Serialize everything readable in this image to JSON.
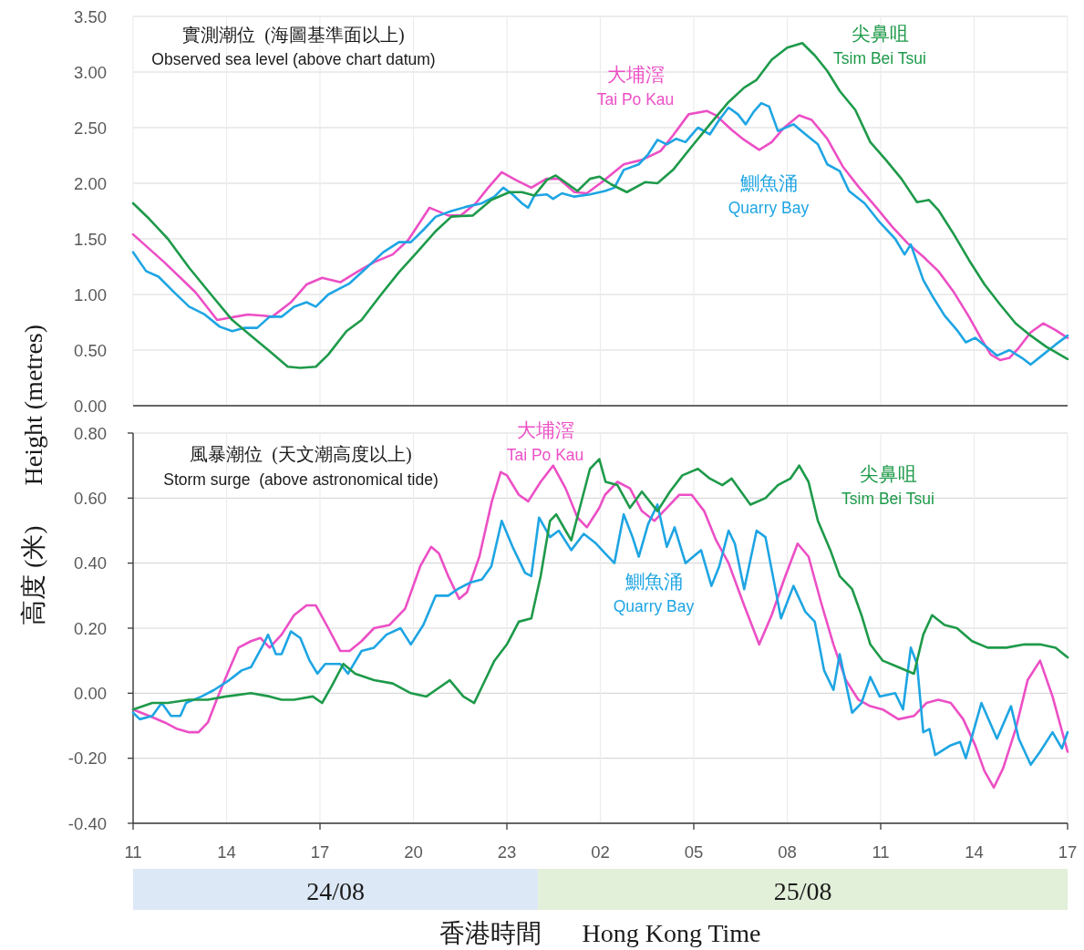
{
  "chart_data": [
    {
      "type": "line",
      "title": "實測潮位  (海圖基準面以上)",
      "subtitle": "Observed sea level (above chart datum)",
      "ylabel": "高度 (米)  Height (metres)",
      "xlim": [
        "--08-24T11:00",
        "--08-25T17:00"
      ],
      "xticks": [
        "--08-24T11:00",
        "--08-24T14:00",
        "--08-24T17:00",
        "--08-24T20:00",
        "--08-24T23:00",
        "--08-25T02:00",
        "--08-25T05:00",
        "--08-25T08:00",
        "--08-25T11:00",
        "--08-25T14:00",
        "--08-25T17:00"
      ],
      "ylim": [
        0,
        3.5
      ],
      "yticks": [
        {
          "value": 0,
          "label": "0.00"
        },
        {
          "value": 0.5,
          "label": "0.50"
        },
        {
          "value": 1,
          "label": "1.00"
        },
        {
          "value": 1.5,
          "label": "1.50"
        },
        {
          "value": 2,
          "label": "2.00"
        },
        {
          "value": 2.5,
          "label": "2.50"
        },
        {
          "value": 3,
          "label": "3.00"
        },
        {
          "value": 3.5,
          "label": "3.50"
        }
      ],
      "grid": true,
      "tick_labels": "y",
      "series": [
        {
          "name": "大埔滘 Tai Po Kau",
          "color": "#ec4fc5",
          "x": [
            "--08-24T11:00",
            "--08-24T12:00",
            "--08-24T13:00",
            "--08-24T13:42",
            "--08-24T14:17",
            "--08-24T14:41",
            "--08-24T15:11",
            "--08-24T15:28",
            "--08-24T16:04",
            "--08-24T16:34",
            "--08-24T17:04",
            "--08-24T17:39",
            "--08-24T18:14",
            "--08-24T18:44",
            "--08-24T19:20",
            "--08-24T19:50",
            "--08-24T20:31",
            "--08-24T21:07",
            "--08-24T21:31",
            "--08-24T22:00",
            "--08-24T22:24",
            "--08-24T22:50",
            "--08-24T23:17",
            "--08-24T23:47",
            "--08-25T00:16",
            "--08-25T00:40",
            "--08-25T01:10",
            "--08-25T01:34",
            "--08-25T02:03",
            "--08-25T02:45",
            "--08-25T03:20",
            "--08-25T03:56",
            "--08-25T04:20",
            "--08-25T04:50",
            "--08-25T05:25",
            "--08-25T05:43",
            "--08-25T06:13",
            "--08-25T06:37",
            "--08-25T07:06",
            "--08-25T07:30",
            "--08-25T07:54",
            "--08-25T08:23",
            "--08-25T08:47",
            "--08-25T09:17",
            "--08-25T09:47",
            "--08-25T10:17",
            "--08-25T10:52",
            "--08-25T11:22",
            "--08-25T11:52",
            "--08-25T12:22",
            "--08-25T12:51",
            "--08-25T13:21",
            "--08-25T13:50",
            "--08-25T14:14",
            "--08-25T14:32",
            "--08-25T14:50",
            "--08-25T15:08",
            "--08-25T15:26",
            "--08-25T15:49",
            "--08-25T16:13",
            "--08-25T16:37",
            "--08-25T17:00"
          ],
          "values": [
            1.54,
            1.29,
            1.02,
            0.77,
            0.8,
            0.82,
            0.81,
            0.8,
            0.93,
            1.09,
            1.15,
            1.11,
            1.21,
            1.29,
            1.36,
            1.49,
            1.78,
            1.71,
            1.71,
            1.82,
            1.96,
            2.1,
            2.03,
            1.96,
            2.04,
            2.04,
            1.92,
            1.91,
            2.01,
            2.17,
            2.21,
            2.29,
            2.43,
            2.62,
            2.65,
            2.61,
            2.48,
            2.39,
            2.3,
            2.37,
            2.5,
            2.61,
            2.57,
            2.4,
            2.15,
            1.97,
            1.78,
            1.61,
            1.46,
            1.34,
            1.21,
            1.02,
            0.8,
            0.6,
            0.46,
            0.41,
            0.43,
            0.52,
            0.66,
            0.74,
            0.68,
            0.61
          ]
        },
        {
          "name": "鰂魚涌 Quarry Bay",
          "color": "#1ea5e3",
          "x": [
            "--08-24T11:00",
            "--08-24T11:25",
            "--08-24T11:49",
            "--08-24T12:19",
            "--08-24T12:48",
            "--08-24T13:18",
            "--08-24T13:47",
            "--08-24T14:11",
            "--08-24T14:35",
            "--08-24T14:59",
            "--08-24T15:23",
            "--08-24T15:46",
            "--08-24T16:10",
            "--08-24T16:34",
            "--08-24T16:52",
            "--08-24T17:16",
            "--08-24T17:45",
            "--08-24T17:57",
            "--08-24T18:32",
            "--08-24T19:02",
            "--08-24T19:32",
            "--08-24T19:55",
            "--08-24T20:19",
            "--08-24T20:43",
            "--08-24T21:13",
            "--08-24T21:43",
            "--08-24T22:12",
            "--08-24T22:36",
            "--08-24T22:53",
            "--08-24T23:11",
            "--08-24T23:29",
            "--08-24T23:41",
            "--08-24T23:53",
            "--08-25T00:17",
            "--08-25T00:29",
            "--08-25T00:46",
            "--08-25T01:10",
            "--08-25T01:40",
            "--08-25T02:09",
            "--08-25T02:27",
            "--08-25T02:45",
            "--08-25T03:14",
            "--08-25T03:32",
            "--08-25T03:50",
            "--08-25T04:08",
            "--08-25T04:26",
            "--08-25T04:44",
            "--08-25T05:08",
            "--08-25T05:31",
            "--08-25T05:49",
            "--08-25T06:07",
            "--08-25T06:25",
            "--08-25T06:40",
            "--08-25T06:55",
            "--08-25T07:10",
            "--08-25T07:25",
            "--08-25T07:42",
            "--08-25T08:12",
            "--08-25T08:35",
            "--08-25T08:59",
            "--08-25T09:17",
            "--08-25T09:41",
            "--08-25T09:59",
            "--08-25T10:29",
            "--08-25T10:58",
            "--08-25T11:28",
            "--08-25T11:46",
            "--08-25T11:58",
            "--08-25T12:22",
            "--08-25T12:39",
            "--08-25T13:03",
            "--08-25T13:27",
            "--08-25T13:44",
            "--08-25T14:02",
            "--08-25T14:26",
            "--08-25T14:44",
            "--08-25T15:08",
            "--08-25T15:32",
            "--08-25T15:49",
            "--08-25T16:13",
            "--08-25T16:37",
            "--08-25T17:00"
          ],
          "values": [
            1.38,
            1.21,
            1.16,
            1.02,
            0.89,
            0.82,
            0.71,
            0.67,
            0.7,
            0.7,
            0.8,
            0.8,
            0.89,
            0.93,
            0.89,
            1.0,
            1.07,
            1.1,
            1.25,
            1.38,
            1.47,
            1.47,
            1.58,
            1.7,
            1.75,
            1.79,
            1.82,
            1.88,
            1.96,
            1.9,
            1.82,
            1.78,
            1.89,
            1.9,
            1.86,
            1.91,
            1.88,
            1.9,
            1.93,
            1.96,
            2.12,
            2.17,
            2.26,
            2.39,
            2.35,
            2.4,
            2.37,
            2.5,
            2.44,
            2.57,
            2.68,
            2.62,
            2.53,
            2.64,
            2.72,
            2.69,
            2.47,
            2.53,
            2.44,
            2.35,
            2.17,
            2.11,
            1.93,
            1.82,
            1.65,
            1.5,
            1.36,
            1.45,
            1.13,
            0.99,
            0.81,
            0.68,
            0.57,
            0.61,
            0.52,
            0.45,
            0.5,
            0.43,
            0.37,
            0.46,
            0.55,
            0.63
          ]
        },
        {
          "name": "尖鼻咀 Tsim Bei Tsui",
          "color": "#1e9a4a",
          "x": [
            "--08-24T11:00",
            "--08-24T11:31",
            "--08-24T12:07",
            "--08-24T12:48",
            "--08-24T13:30",
            "--08-24T14:11",
            "--08-24T14:47",
            "--08-24T15:23",
            "--08-24T15:58",
            "--08-24T16:22",
            "--08-24T16:52",
            "--08-24T17:16",
            "--08-24T17:51",
            "--08-24T18:20",
            "--08-24T18:56",
            "--08-24T19:32",
            "--08-24T20:07",
            "--08-24T20:43",
            "--08-24T21:13",
            "--08-24T21:54",
            "--08-24T22:30",
            "--08-24T23:05",
            "--08-24T23:29",
            "--08-24T23:53",
            "--08-25T00:17",
            "--08-25T00:34",
            "--08-25T00:52",
            "--08-25T01:16",
            "--08-25T01:40",
            "--08-25T01:58",
            "--08-25T02:21",
            "--08-25T02:51",
            "--08-25T03:26",
            "--08-25T03:50",
            "--08-25T04:20",
            "--08-25T04:56",
            "--08-25T05:31",
            "--08-25T06:07",
            "--08-25T06:37",
            "--08-25T07:01",
            "--08-25T07:30",
            "--08-25T08:00",
            "--08-25T08:29",
            "--08-25T08:53",
            "--08-25T09:17",
            "--08-25T09:41",
            "--08-25T10:11",
            "--08-25T10:40",
            "--08-25T11:10",
            "--08-25T11:40",
            "--08-25T12:10",
            "--08-25T12:33",
            "--08-25T12:51",
            "--08-25T13:21",
            "--08-25T13:50",
            "--08-25T14:20",
            "--08-25T14:50",
            "--08-25T15:20",
            "--08-25T15:49",
            "--08-25T16:19",
            "--08-25T17:00"
          ],
          "values": [
            1.82,
            1.68,
            1.5,
            1.24,
            1.0,
            0.77,
            0.63,
            0.49,
            0.35,
            0.34,
            0.35,
            0.46,
            0.67,
            0.77,
            0.99,
            1.2,
            1.38,
            1.57,
            1.7,
            1.71,
            1.85,
            1.92,
            1.92,
            1.89,
            2.03,
            2.07,
            2.01,
            1.93,
            2.04,
            2.06,
            1.99,
            1.92,
            2.01,
            2.0,
            2.12,
            2.33,
            2.53,
            2.73,
            2.86,
            2.93,
            3.11,
            3.22,
            3.26,
            3.15,
            3.01,
            2.83,
            2.66,
            2.37,
            2.21,
            2.04,
            1.83,
            1.85,
            1.76,
            1.54,
            1.31,
            1.09,
            0.91,
            0.74,
            0.63,
            0.53,
            0.42
          ]
        }
      ]
    },
    {
      "type": "line",
      "title": "風暴潮位  (天文潮高度以上)",
      "subtitle": "Storm surge  (above astronomical tide)",
      "xlabel": "香港時間  Hong Kong Time",
      "xlim": [
        "--08-24T11:00",
        "--08-25T17:00"
      ],
      "xticks": [
        {
          "value": "--08-24T11:00",
          "label": "11"
        },
        {
          "value": "--08-24T14:00",
          "label": "14"
        },
        {
          "value": "--08-24T17:00",
          "label": "17"
        },
        {
          "value": "--08-24T20:00",
          "label": "20"
        },
        {
          "value": "--08-24T23:00",
          "label": "23"
        },
        {
          "value": "--08-25T02:00",
          "label": "02"
        },
        {
          "value": "--08-25T05:00",
          "label": "05"
        },
        {
          "value": "--08-25T08:00",
          "label": "08"
        },
        {
          "value": "--08-25T11:00",
          "label": "11"
        },
        {
          "value": "--08-25T14:00",
          "label": "14"
        },
        {
          "value": "--08-25T17:00",
          "label": "17"
        }
      ],
      "ylim": [
        -0.4,
        0.8
      ],
      "yticks": [
        {
          "value": -0.4,
          "label": "-0.40"
        },
        {
          "value": -0.2,
          "label": "-0.20"
        },
        {
          "value": 0,
          "label": "0.00"
        },
        {
          "value": 0.2,
          "label": "0.20"
        },
        {
          "value": 0.4,
          "label": "0.40"
        },
        {
          "value": 0.6,
          "label": "0.60"
        },
        {
          "value": 0.8,
          "label": "0.80"
        }
      ],
      "grid": true,
      "annotations": [
        "24/08",
        "25/08"
      ],
      "series": [
        {
          "name": "大埔滘 Tai Po Kau",
          "color": "#ec4fc5",
          "x": [
            "--08-24T11:00",
            "--08-24T11:31",
            "--08-24T12:01",
            "--08-24T12:25",
            "--08-24T12:48",
            "--08-24T13:06",
            "--08-24T13:24",
            "--08-24T13:41",
            "--08-24T13:59",
            "--08-24T14:23",
            "--08-24T14:47",
            "--08-24T15:05",
            "--08-24T15:23",
            "--08-24T15:46",
            "--08-24T16:10",
            "--08-24T16:34",
            "--08-24T16:52",
            "--08-24T17:16",
            "--08-24T17:39",
            "--08-24T17:57",
            "--08-24T18:20",
            "--08-24T18:44",
            "--08-24T19:14",
            "--08-24T19:44",
            "--08-24T20:13",
            "--08-24T20:34",
            "--08-24T20:49",
            "--08-24T21:07",
            "--08-24T21:28",
            "--08-24T21:43",
            "--08-24T22:07",
            "--08-24T22:31",
            "--08-24T22:48",
            "--08-24T23:00",
            "--08-24T23:23",
            "--08-24T23:41",
            "--08-25T00:05",
            "--08-25T00:29",
            "--08-25T00:53",
            "--08-25T01:16",
            "--08-25T01:34",
            "--08-25T01:58",
            "--08-25T02:09",
            "--08-25T02:33",
            "--08-25T02:57",
            "--08-25T03:20",
            "--08-25T03:44",
            "--08-25T04:08",
            "--08-25T04:32",
            "--08-25T04:56",
            "--08-25T05:20",
            "--08-25T05:43",
            "--08-25T06:07",
            "--08-25T06:37",
            "--08-25T07:06",
            "--08-25T07:30",
            "--08-25T07:54",
            "--08-25T08:20",
            "--08-25T08:41",
            "--08-25T09:05",
            "--08-25T09:29",
            "--08-25T09:53",
            "--08-25T10:17",
            "--08-25T10:40",
            "--08-25T11:04",
            "--08-25T11:34",
            "--08-25T12:04",
            "--08-25T12:28",
            "--08-25T12:51",
            "--08-25T13:15",
            "--08-25T13:39",
            "--08-25T14:02",
            "--08-25T14:20",
            "--08-25T14:38",
            "--08-25T14:56",
            "--08-25T15:20",
            "--08-25T15:43",
            "--08-25T16:07",
            "--08-25T16:31",
            "--08-25T17:00"
          ],
          "values": [
            -0.05,
            -0.07,
            -0.09,
            -0.11,
            -0.12,
            -0.12,
            -0.09,
            -0.02,
            0.05,
            0.14,
            0.16,
            0.17,
            0.14,
            0.18,
            0.24,
            0.27,
            0.27,
            0.2,
            0.13,
            0.13,
            0.16,
            0.2,
            0.21,
            0.26,
            0.39,
            0.45,
            0.43,
            0.36,
            0.29,
            0.31,
            0.42,
            0.59,
            0.68,
            0.67,
            0.61,
            0.59,
            0.65,
            0.7,
            0.63,
            0.54,
            0.51,
            0.57,
            0.61,
            0.65,
            0.63,
            0.56,
            0.53,
            0.57,
            0.61,
            0.61,
            0.56,
            0.47,
            0.4,
            0.27,
            0.15,
            0.24,
            0.35,
            0.46,
            0.42,
            0.28,
            0.15,
            0.04,
            -0.02,
            -0.04,
            -0.05,
            -0.08,
            -0.07,
            -0.03,
            -0.02,
            -0.03,
            -0.08,
            -0.16,
            -0.24,
            -0.29,
            -0.23,
            -0.11,
            0.04,
            0.1,
            -0.01,
            -0.18
          ]
        },
        {
          "name": "鰂魚涌 Quarry Bay",
          "color": "#1ea5e3",
          "x": [
            "--08-24T11:00",
            "--08-24T11:13",
            "--08-24T11:37",
            "--08-24T11:55",
            "--08-24T12:13",
            "--08-24T12:31",
            "--08-24T12:42",
            "--08-24T13:12",
            "--08-24T13:36",
            "--08-24T14:05",
            "--08-24T14:29",
            "--08-24T14:47",
            "--08-24T15:11",
            "--08-24T15:20",
            "--08-24T15:35",
            "--08-24T15:46",
            "--08-24T16:04",
            "--08-24T16:22",
            "--08-24T16:40",
            "--08-24T16:55",
            "--08-24T17:10",
            "--08-24T17:39",
            "--08-24T17:54",
            "--08-24T18:20",
            "--08-24T18:44",
            "--08-24T19:08",
            "--08-24T19:35",
            "--08-24T19:55",
            "--08-24T20:19",
            "--08-24T20:43",
            "--08-24T21:07",
            "--08-24T21:25",
            "--08-24T21:49",
            "--08-24T22:12",
            "--08-24T22:30",
            "--08-24T22:50",
            "--08-24T23:11",
            "--08-24T23:35",
            "--08-24T23:47",
            "--08-25T00:02",
            "--08-25T00:23",
            "--08-25T00:40",
            "--08-25T01:04",
            "--08-25T01:28",
            "--08-25T01:52",
            "--08-25T02:09",
            "--08-25T02:27",
            "--08-25T02:45",
            "--08-25T03:02",
            "--08-25T03:14",
            "--08-25T03:32",
            "--08-25T03:50",
            "--08-25T04:08",
            "--08-25T04:23",
            "--08-25T04:44",
            "--08-25T05:14",
            "--08-25T05:34",
            "--08-25T05:49",
            "--08-25T06:07",
            "--08-25T06:19",
            "--08-25T06:37",
            "--08-25T07:01",
            "--08-25T07:18",
            "--08-25T07:36",
            "--08-25T07:48",
            "--08-25T08:12",
            "--08-25T08:35",
            "--08-25T08:53",
            "--08-25T09:11",
            "--08-25T09:29",
            "--08-25T09:41",
            "--08-25T10:05",
            "--08-25T10:23",
            "--08-25T10:40",
            "--08-25T10:58",
            "--08-25T11:28",
            "--08-25T11:43",
            "--08-25T11:58",
            "--08-25T12:10",
            "--08-25T12:22",
            "--08-25T12:34",
            "--08-25T12:45",
            "--08-25T13:15",
            "--08-25T13:33",
            "--08-25T13:44",
            "--08-25T14:14",
            "--08-25T14:44",
            "--08-25T15:11",
            "--08-25T15:26",
            "--08-25T15:49",
            "--08-25T16:07",
            "--08-25T16:31",
            "--08-25T16:49",
            "--08-25T17:00"
          ],
          "values": [
            -0.06,
            -0.08,
            -0.07,
            -0.03,
            -0.07,
            -0.07,
            -0.03,
            -0.01,
            0.01,
            0.04,
            0.07,
            0.08,
            0.15,
            0.18,
            0.12,
            0.12,
            0.19,
            0.17,
            0.1,
            0.06,
            0.09,
            0.09,
            0.06,
            0.13,
            0.14,
            0.18,
            0.2,
            0.15,
            0.21,
            0.3,
            0.3,
            0.32,
            0.34,
            0.35,
            0.39,
            0.53,
            0.45,
            0.37,
            0.36,
            0.54,
            0.48,
            0.5,
            0.44,
            0.49,
            0.46,
            0.43,
            0.4,
            0.55,
            0.48,
            0.42,
            0.52,
            0.58,
            0.45,
            0.51,
            0.4,
            0.44,
            0.33,
            0.39,
            0.5,
            0.46,
            0.32,
            0.5,
            0.48,
            0.33,
            0.23,
            0.33,
            0.25,
            0.22,
            0.07,
            0.01,
            0.12,
            -0.06,
            -0.03,
            0.05,
            -0.01,
            0.0,
            -0.05,
            0.14,
            0.09,
            -0.12,
            -0.11,
            -0.19,
            -0.16,
            -0.15,
            -0.2,
            -0.03,
            -0.14,
            -0.04,
            -0.14,
            -0.22,
            -0.18,
            -0.12,
            -0.17,
            -0.12
          ]
        },
        {
          "name": "尖鼻咀 Tsim Bei Tsui",
          "color": "#1e9a4a",
          "x": [
            "--08-24T11:00",
            "--08-24T11:37",
            "--08-24T12:07",
            "--08-24T12:48",
            "--08-24T13:24",
            "--08-24T13:59",
            "--08-24T14:47",
            "--08-24T15:23",
            "--08-24T15:46",
            "--08-24T16:10",
            "--08-24T16:46",
            "--08-24T17:04",
            "--08-24T17:22",
            "--08-24T17:45",
            "--08-24T18:08",
            "--08-24T18:44",
            "--08-24T19:20",
            "--08-24T19:55",
            "--08-24T20:25",
            "--08-24T20:43",
            "--08-24T21:10",
            "--08-24T21:36",
            "--08-24T21:57",
            "--08-24T22:12",
            "--08-24T22:36",
            "--08-24T23:00",
            "--08-24T23:23",
            "--08-24T23:47",
            "--08-25T00:05",
            "--08-25T00:23",
            "--08-25T00:35",
            "--08-25T00:53",
            "--08-25T01:04",
            "--08-25T01:22",
            "--08-25T01:40",
            "--08-25T01:58",
            "--08-25T02:10",
            "--08-25T02:33",
            "--08-25T02:57",
            "--08-25T03:20",
            "--08-25T03:50",
            "--08-25T04:14",
            "--08-25T04:38",
            "--08-25T05:08",
            "--08-25T05:31",
            "--08-25T05:55",
            "--08-25T06:13",
            "--08-25T06:31",
            "--08-25T06:49",
            "--08-25T07:18",
            "--08-25T07:42",
            "--08-25T08:06",
            "--08-25T08:23",
            "--08-25T08:41",
            "--08-25T08:59",
            "--08-25T09:23",
            "--08-25T09:41",
            "--08-25T10:05",
            "--08-25T10:23",
            "--08-25T10:40",
            "--08-25T11:04",
            "--08-25T11:34",
            "--08-25T12:04",
            "--08-25T12:22",
            "--08-25T12:39",
            "--08-25T13:03",
            "--08-25T13:27",
            "--08-25T13:56",
            "--08-25T14:26",
            "--08-25T15:02",
            "--08-25T15:37",
            "--08-25T16:07",
            "--08-25T16:37",
            "--08-25T17:00"
          ],
          "values": [
            -0.05,
            -0.03,
            -0.03,
            -0.02,
            -0.02,
            -0.01,
            0.0,
            -0.01,
            -0.02,
            -0.02,
            -0.01,
            -0.03,
            0.02,
            0.09,
            0.06,
            0.04,
            0.03,
            0.0,
            -0.01,
            0.01,
            0.04,
            -0.01,
            -0.03,
            0.02,
            0.1,
            0.15,
            0.22,
            0.23,
            0.36,
            0.53,
            0.55,
            0.5,
            0.47,
            0.58,
            0.69,
            0.72,
            0.65,
            0.64,
            0.57,
            0.62,
            0.56,
            0.62,
            0.67,
            0.69,
            0.66,
            0.64,
            0.66,
            0.62,
            0.58,
            0.6,
            0.64,
            0.66,
            0.7,
            0.65,
            0.53,
            0.44,
            0.36,
            0.32,
            0.24,
            0.15,
            0.1,
            0.08,
            0.06,
            0.18,
            0.24,
            0.21,
            0.2,
            0.16,
            0.14,
            0.14,
            0.15,
            0.15,
            0.14,
            0.11
          ]
        }
      ]
    }
  ]
}
